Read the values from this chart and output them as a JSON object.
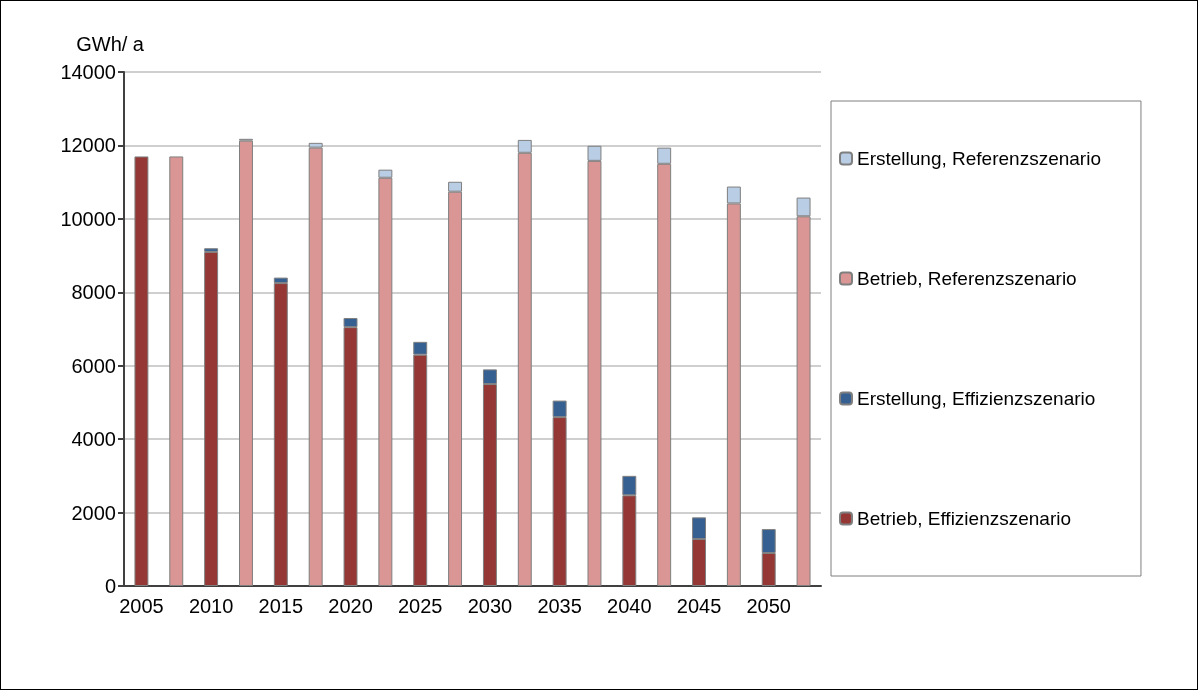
{
  "chart_data": {
    "type": "bar",
    "stacked": true,
    "ylabel": "GWh/ a",
    "categories": [
      "2005",
      null,
      "2010",
      null,
      "2015",
      null,
      "2020",
      null,
      "2025",
      null,
      "2030",
      null,
      "2035",
      null,
      "2040",
      null,
      "2045",
      null,
      "2050",
      null
    ],
    "series": [
      {
        "name": "Betrieb, Effizienzszenario",
        "color": "#953735",
        "values": [
          11700,
          null,
          9100,
          null,
          8250,
          null,
          7050,
          null,
          6300,
          null,
          5500,
          null,
          4600,
          null,
          2470,
          null,
          1280,
          null,
          900,
          null
        ]
      },
      {
        "name": "Erstellung, Effizienzszenario",
        "color": "#376092",
        "values": [
          null,
          null,
          100,
          null,
          150,
          null,
          250,
          null,
          350,
          null,
          400,
          null,
          450,
          null,
          530,
          null,
          590,
          null,
          650,
          null
        ]
      },
      {
        "name": "Betrieb, Referenzszenario",
        "color": "#d99694",
        "values": [
          null,
          11700,
          null,
          12130,
          null,
          11940,
          null,
          11120,
          null,
          10740,
          null,
          11800,
          null,
          11580,
          null,
          11500,
          null,
          10420,
          null,
          10070
        ]
      },
      {
        "name": "Erstellung, Referenzszenario",
        "color": "#b9cde5",
        "values": [
          null,
          null,
          null,
          50,
          null,
          130,
          null,
          220,
          null,
          270,
          null,
          350,
          null,
          410,
          null,
          440,
          null,
          460,
          null,
          510
        ]
      }
    ],
    "ylim": [
      0,
      14000
    ],
    "yticks": [
      0,
      2000,
      4000,
      6000,
      8000,
      10000,
      12000,
      14000
    ],
    "grid": "y",
    "legend": "right"
  }
}
